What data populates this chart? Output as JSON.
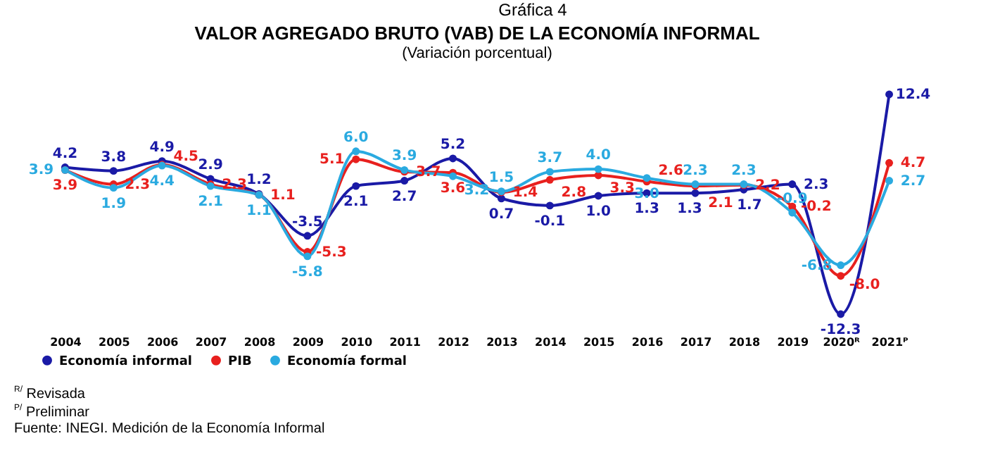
{
  "chart_data": {
    "type": "line",
    "title": "VALOR AGREGADO BRUTO (VAB) DE LA ECONOMÍA INFORMAL",
    "subtitle": "(Variación porcentual)",
    "categories": [
      "2004",
      "2005",
      "2006",
      "2007",
      "2008",
      "2009",
      "2010",
      "2011",
      "2012",
      "2013",
      "2014",
      "2015",
      "2016",
      "2017",
      "2018",
      "2019",
      "2020ᴿ",
      "2021ᴾ"
    ],
    "series": [
      {
        "name": "Economía informal",
        "color": "#1a1aa6",
        "values": [
          4.2,
          3.8,
          4.9,
          2.9,
          1.2,
          -3.5,
          2.1,
          2.7,
          5.2,
          0.7,
          -0.1,
          1.0,
          1.3,
          1.3,
          1.7,
          2.3,
          -12.3,
          12.4
        ],
        "value_labels": [
          "4.2",
          "3.8",
          "4.9",
          "2.9",
          "1.2",
          "-3.5",
          "2.1",
          "2.7",
          "5.2",
          "0.7",
          "-0.1",
          "1.0",
          "1.3",
          "1.3",
          "1.7",
          "2.3",
          "-12.3",
          "12.4"
        ]
      },
      {
        "name": "PIB",
        "color": "#e8201e",
        "values": [
          3.9,
          2.3,
          4.5,
          2.3,
          1.1,
          -5.3,
          5.1,
          3.7,
          3.6,
          1.4,
          2.8,
          3.3,
          2.6,
          2.1,
          2.2,
          -0.2,
          -8.0,
          4.7
        ],
        "value_labels": [
          "3.9",
          "2.3",
          "4.5",
          "2.3",
          "1.1",
          "-5.3",
          "5.1",
          "3.7",
          "3.6",
          "1.4",
          "2.8",
          "3.3",
          "2.6",
          "2.1",
          "2.2",
          "-0.2",
          "-8.0",
          "4.7"
        ]
      },
      {
        "name": "Economía formal",
        "color": "#2aaae0",
        "values": [
          3.9,
          1.9,
          4.4,
          2.1,
          1.1,
          -5.8,
          6.0,
          3.9,
          3.2,
          1.5,
          3.7,
          4.0,
          3.0,
          2.3,
          2.3,
          -0.9,
          -6.8,
          2.7
        ],
        "value_labels": [
          "3.9",
          "1.9",
          "4.4",
          "2.1",
          "1.1",
          "-5.8",
          "6.0",
          "3.9",
          "3.2",
          "1.5",
          "3.7",
          "4.0",
          "3.0",
          "2.3",
          "2.3",
          "-0.9",
          "-6.8",
          "2.7"
        ]
      }
    ],
    "marker": "circle",
    "legend": "bottom",
    "grid": false,
    "tick_labels": "x",
    "annotations": [
      "Gráfica 4",
      "$^{R/}$ Revisada",
      "$^{P/}$ Preliminar",
      "Fuente: INEGI. Medición de la Economía Informal"
    ]
  }
}
